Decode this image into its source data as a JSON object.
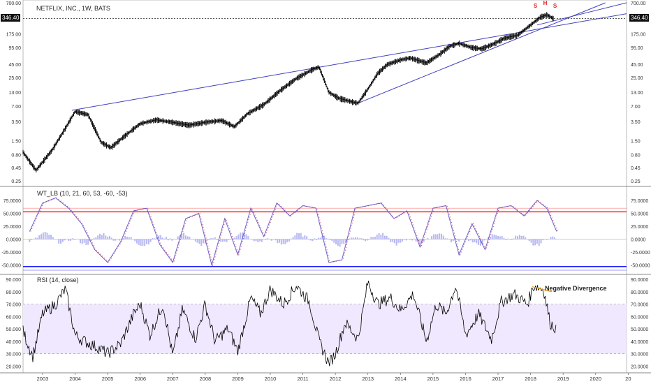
{
  "symbol_title": "NETFLIX, INC., 1W, BATS",
  "last_price_tag": "346.40",
  "price_axis_ticks": [
    "700.00",
    "346.40",
    "175.00",
    "95.00",
    "45.00",
    "25.00",
    "13.00",
    "7.00",
    "3.50",
    "1.50",
    "0.80",
    "0.45",
    "0.25"
  ],
  "pattern_labels": [
    "S",
    "H",
    "S"
  ],
  "wt_title": "WT_LB (10, 21, 60, 53, -60, -53)",
  "wt_axis_ticks": [
    "75.0000",
    "50.0000",
    "25.0000",
    "0.0000",
    "-25.0000",
    "-50.0000"
  ],
  "rsi_title": "RSI (14, close)",
  "rsi_axis_ticks": [
    "90.0000",
    "80.0000",
    "70.0000",
    "60.0000",
    "50.0000",
    "40.0000",
    "30.0000",
    "20.0000"
  ],
  "rsi_axis_ticks_left": [
    "90.000",
    "80.000",
    "70.000",
    "60.000",
    "50.000",
    "40.000",
    "30.000",
    "20.000"
  ],
  "annotation": "Negative Divergence",
  "x_ticks": [
    "2003",
    "2004",
    "2005",
    "2006",
    "2007",
    "2008",
    "2009",
    "2010",
    "2011",
    "2012",
    "2013",
    "2014",
    "2015",
    "2016",
    "2017",
    "2018",
    "2019",
    "2020",
    "20"
  ],
  "colors": {
    "candles": "#000000",
    "trendline": "#3f3fbf",
    "pattern_label": "#e02020",
    "wt_line": "#6c5fc7",
    "wt_signal": "#c0306a",
    "wt_hist": "#b8b8f2",
    "wt_upper": "#ff2222",
    "wt_lower": "#2222ff",
    "rsi_line": "#000000",
    "rsi_band": "#efe8ff",
    "divergence": "#f39c12"
  },
  "chart_data": [
    {
      "type": "line",
      "title": "NETFLIX, INC., 1W, BATS",
      "scale": "log",
      "x": [
        2002.4,
        2002.8,
        2003.3,
        2003.7,
        2004.0,
        2004.4,
        2004.8,
        2005.1,
        2005.5,
        2006.0,
        2006.5,
        2007.0,
        2007.5,
        2008.0,
        2008.5,
        2008.9,
        2009.3,
        2009.8,
        2010.3,
        2010.8,
        2011.3,
        2011.5,
        2011.8,
        2012.1,
        2012.5,
        2012.7,
        2013.0,
        2013.3,
        2013.6,
        2014.0,
        2014.3,
        2014.8,
        2015.2,
        2015.5,
        2015.8,
        2016.2,
        2016.5,
        2016.9,
        2017.2,
        2017.6,
        2018.0,
        2018.3,
        2018.5,
        2018.7
      ],
      "y": [
        0.9,
        0.4,
        1.0,
        2.6,
        5.5,
        4.8,
        1.4,
        1.1,
        1.8,
        3.2,
        3.8,
        3.4,
        3.0,
        3.4,
        3.7,
        2.8,
        5.0,
        7.5,
        14.0,
        24.0,
        36.0,
        40.0,
        13.0,
        10.0,
        8.5,
        8.0,
        15.0,
        30.0,
        45.0,
        55.0,
        60.0,
        48.0,
        70.0,
        100.0,
        115.0,
        95.0,
        90.0,
        115.0,
        145.0,
        165.0,
        260.0,
        370.0,
        410.0,
        346.4
      ],
      "ylim": [
        0.25,
        700
      ],
      "last_value": 346.4
    },
    {
      "type": "line",
      "title": "WT_LB (10, 21, 60, 53, -60, -53)",
      "x": [
        2002.6,
        2003.0,
        2003.4,
        2003.8,
        2004.2,
        2004.6,
        2005.0,
        2005.4,
        2005.8,
        2006.2,
        2006.6,
        2007.0,
        2007.4,
        2007.8,
        2008.2,
        2008.6,
        2009.0,
        2009.4,
        2009.8,
        2010.2,
        2010.6,
        2011.0,
        2011.4,
        2011.8,
        2012.2,
        2012.6,
        2013.0,
        2013.4,
        2013.8,
        2014.2,
        2014.6,
        2015.0,
        2015.4,
        2015.8,
        2016.2,
        2016.6,
        2017.0,
        2017.4,
        2017.8,
        2018.2,
        2018.5,
        2018.8
      ],
      "y": [
        15,
        70,
        80,
        60,
        30,
        -20,
        -45,
        -5,
        55,
        60,
        -10,
        -45,
        40,
        50,
        -50,
        40,
        -30,
        60,
        5,
        70,
        45,
        65,
        60,
        -45,
        -40,
        60,
        65,
        70,
        40,
        55,
        -15,
        60,
        65,
        -30,
        30,
        -20,
        60,
        65,
        45,
        75,
        60,
        15
      ],
      "overbought": [
        60,
        53
      ],
      "oversold": [
        -60,
        -53
      ],
      "ylim": [
        -60,
        90
      ]
    },
    {
      "type": "line",
      "title": "RSI (14, close)",
      "x": [
        2002.4,
        2002.7,
        2003.0,
        2003.4,
        2003.7,
        2004.0,
        2004.3,
        2004.7,
        2005.0,
        2005.4,
        2005.8,
        2006.0,
        2006.3,
        2006.7,
        2007.0,
        2007.3,
        2007.7,
        2008.0,
        2008.3,
        2008.7,
        2009.0,
        2009.4,
        2009.7,
        2010.0,
        2010.4,
        2010.8,
        2011.2,
        2011.5,
        2011.8,
        2012.0,
        2012.3,
        2012.7,
        2013.0,
        2013.3,
        2013.7,
        2014.0,
        2014.4,
        2014.8,
        2015.1,
        2015.4,
        2015.7,
        2016.0,
        2016.4,
        2016.8,
        2017.1,
        2017.5,
        2017.9,
        2018.1,
        2018.4,
        2018.6,
        2018.8
      ],
      "y": [
        48,
        28,
        62,
        70,
        82,
        45,
        40,
        35,
        30,
        38,
        62,
        70,
        45,
        70,
        28,
        66,
        42,
        70,
        40,
        50,
        32,
        75,
        62,
        82,
        70,
        85,
        72,
        40,
        22,
        30,
        55,
        42,
        88,
        70,
        75,
        65,
        78,
        40,
        70,
        62,
        85,
        45,
        62,
        42,
        72,
        78,
        70,
        85,
        82,
        55,
        50
      ],
      "bands": [
        70,
        30
      ],
      "ylim": [
        18,
        90
      ],
      "annotation": "Negative Divergence"
    }
  ]
}
